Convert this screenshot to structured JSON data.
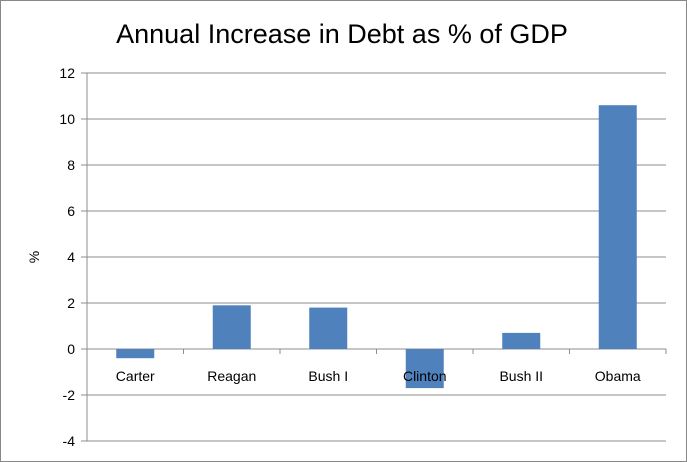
{
  "chart_data": {
    "type": "bar",
    "title": "Annual Increase in Debt as % of GDP",
    "xlabel": "",
    "ylabel": "%",
    "categories": [
      "Carter",
      "Reagan",
      "Bush I",
      "Clinton",
      "Bush II",
      "Obama"
    ],
    "values": [
      -0.4,
      1.9,
      1.8,
      -1.7,
      0.7,
      10.6
    ],
    "ylim": [
      -4,
      12
    ],
    "yticks": [
      "12",
      "10",
      "8",
      "6",
      "4",
      "2",
      "0",
      "-2",
      "-4"
    ],
    "grid": true,
    "legend": "none",
    "bar_color": "#4f81bd"
  }
}
